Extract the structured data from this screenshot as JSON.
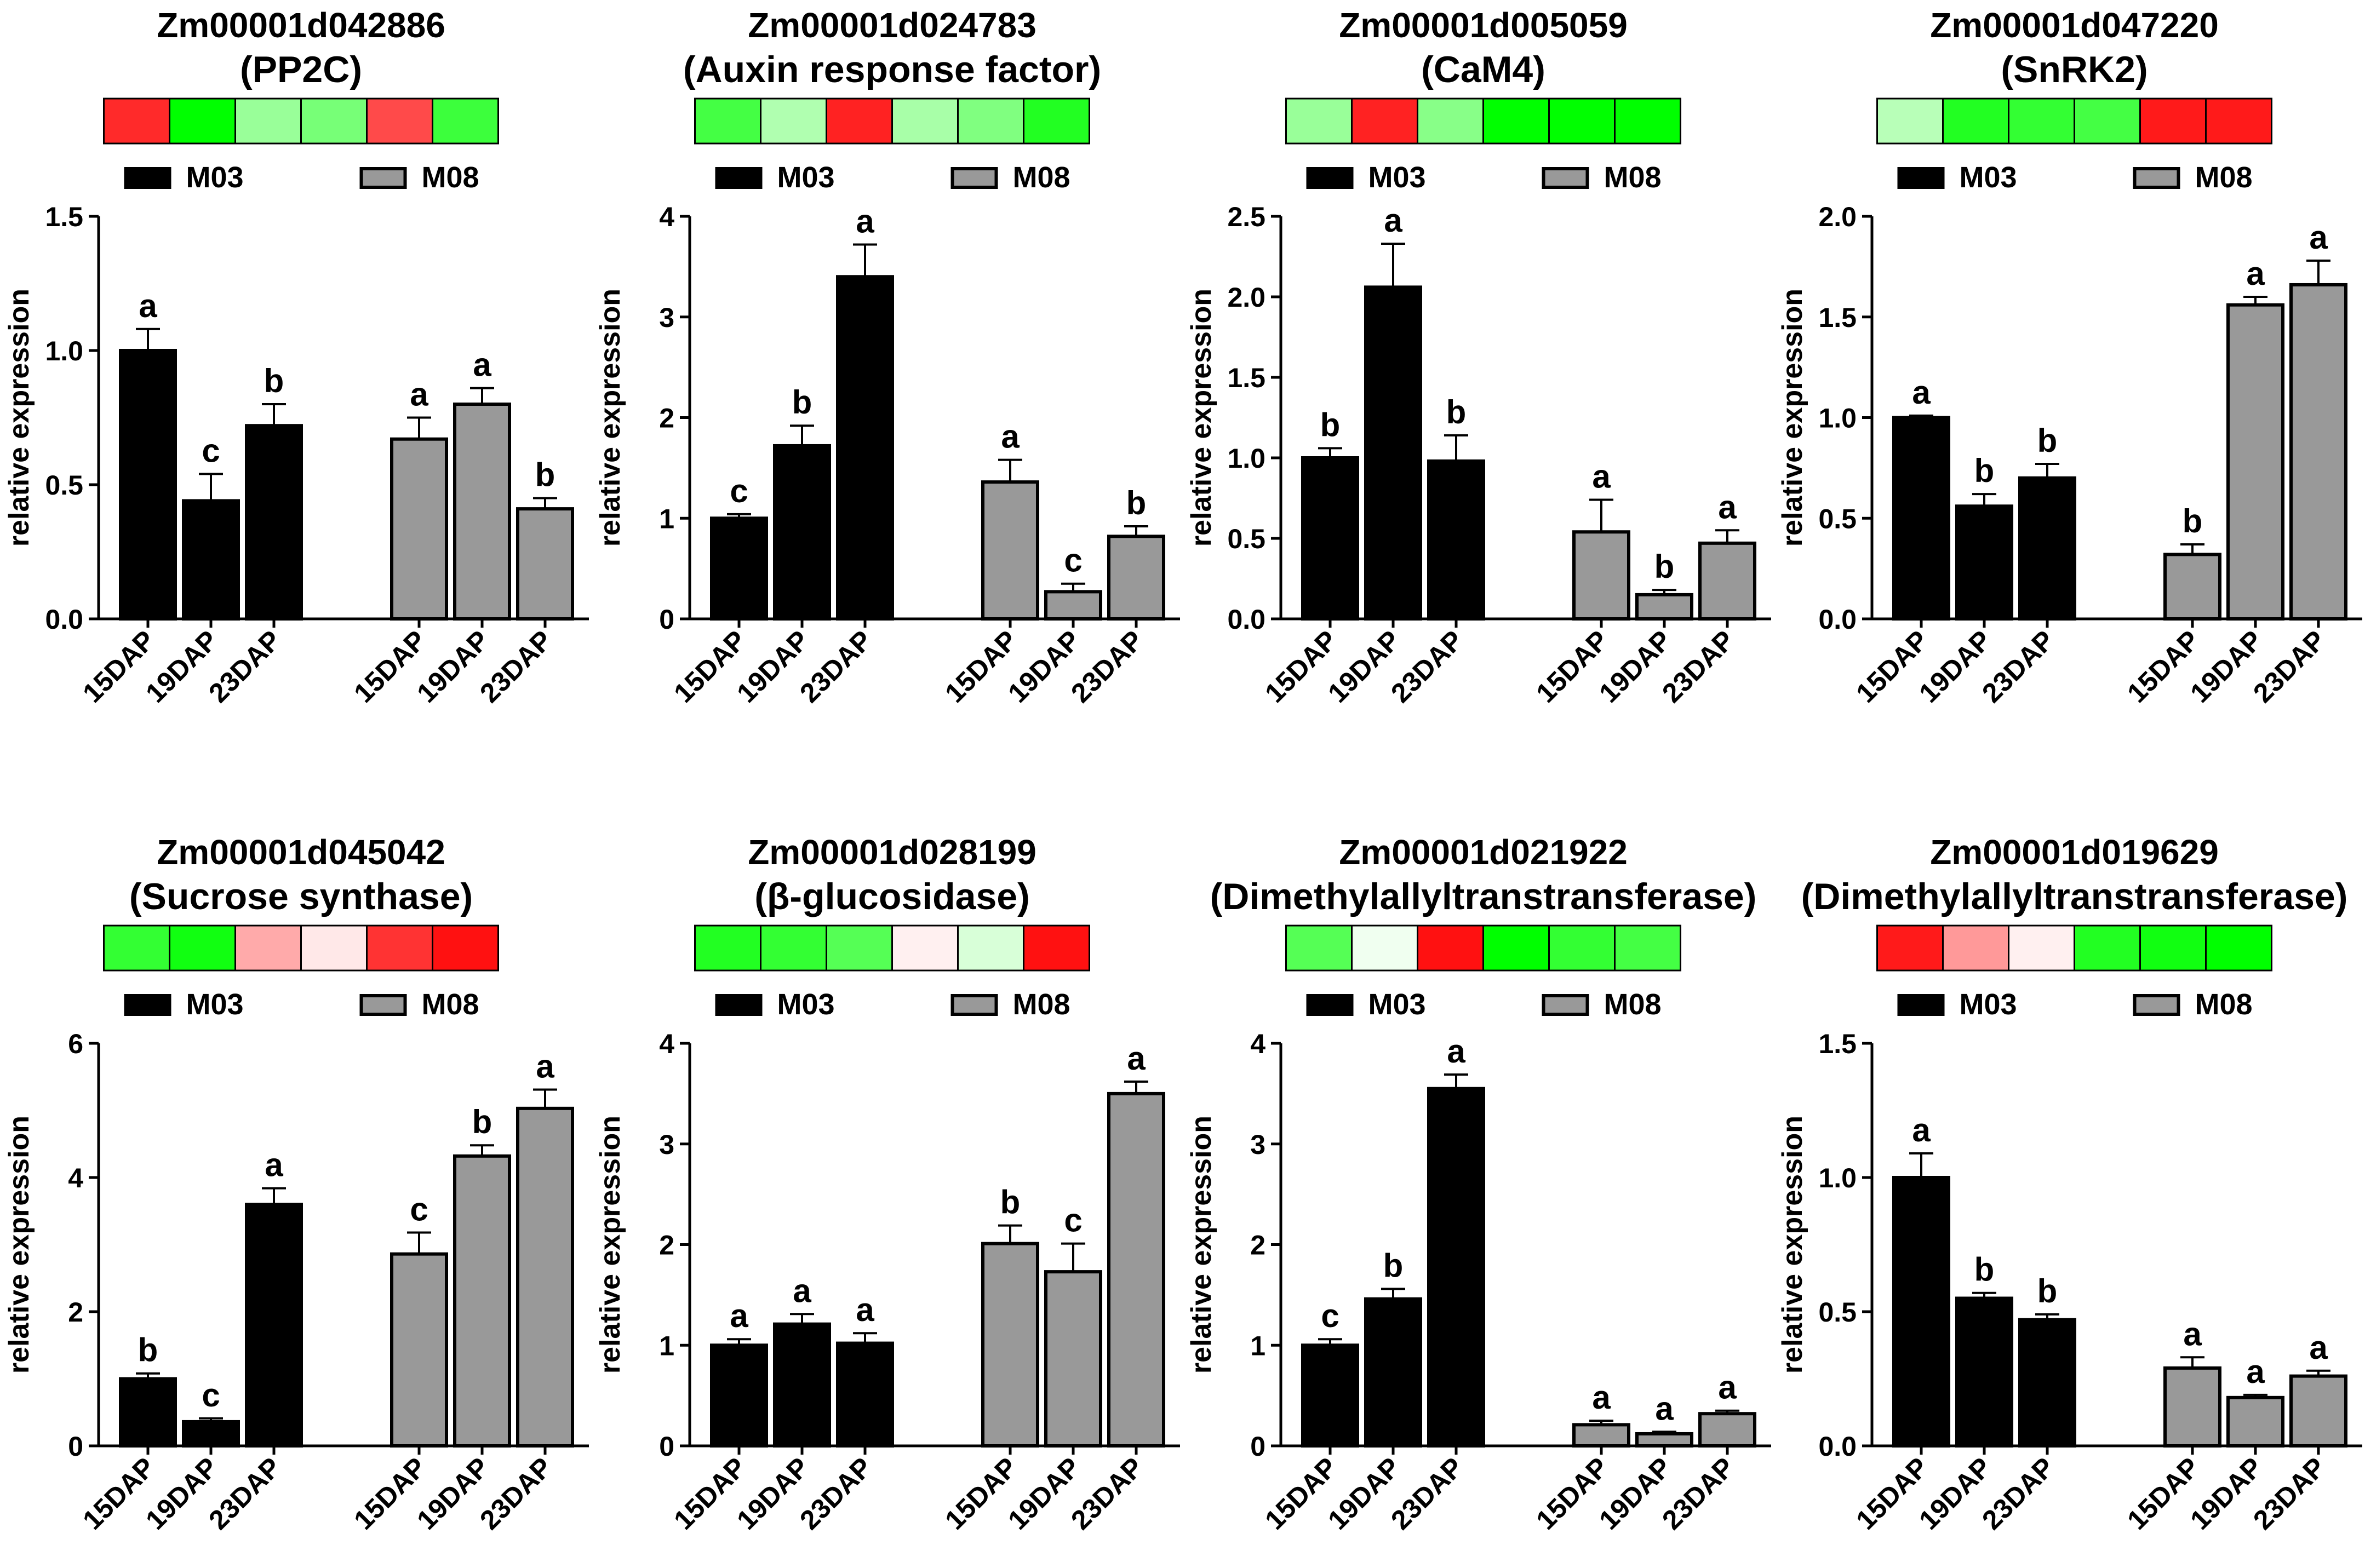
{
  "figure": {
    "legend_labels": [
      "M03",
      "M08"
    ]
  },
  "colors": {
    "m03_bar": "#000000",
    "m08_bar": "#999999"
  },
  "chart_data": [
    {
      "type": "bar",
      "title": "Zm00001d042886",
      "subtitle": "(PP2C)",
      "heatmap": [
        "#ff2a2a",
        "#00ff00",
        "#99ff99",
        "#77ff77",
        "#ff4a4a",
        "#3cff3c"
      ],
      "ylabel": "relative expression",
      "ylim": [
        0,
        1.5
      ],
      "yticks": [
        "0.0",
        "0.5",
        "1.0",
        "1.5"
      ],
      "categories": [
        "15DAP",
        "19DAP",
        "23DAP"
      ],
      "series": [
        {
          "name": "M03",
          "values": [
            1.0,
            0.44,
            0.72
          ],
          "errors": [
            0.08,
            0.1,
            0.08
          ],
          "letters": [
            "a",
            "c",
            "b"
          ]
        },
        {
          "name": "M08",
          "values": [
            0.67,
            0.8,
            0.41
          ],
          "errors": [
            0.08,
            0.06,
            0.04
          ],
          "letters": [
            "a",
            "a",
            "b"
          ]
        }
      ]
    },
    {
      "type": "bar",
      "title": "Zm00001d024783",
      "subtitle": "(Auxin response factor)",
      "heatmap": [
        "#44ff44",
        "#b0ffb0",
        "#ff2222",
        "#a8ffa8",
        "#80ff80",
        "#22ff22"
      ],
      "ylabel": "relative expression",
      "ylim": [
        0,
        4
      ],
      "yticks": [
        "0",
        "1",
        "2",
        "3",
        "4"
      ],
      "categories": [
        "15DAP",
        "19DAP",
        "23DAP"
      ],
      "series": [
        {
          "name": "M03",
          "values": [
            1.0,
            1.72,
            3.4
          ],
          "errors": [
            0.04,
            0.2,
            0.32
          ],
          "letters": [
            "c",
            "b",
            "a"
          ]
        },
        {
          "name": "M08",
          "values": [
            1.36,
            0.27,
            0.82
          ],
          "errors": [
            0.22,
            0.08,
            0.1
          ],
          "letters": [
            "a",
            "c",
            "b"
          ]
        }
      ]
    },
    {
      "type": "bar",
      "title": "Zm00001d005059",
      "subtitle": "(CaM4)",
      "heatmap": [
        "#99ff99",
        "#ff2222",
        "#88ff88",
        "#00ff00",
        "#00ff00",
        "#00ff00"
      ],
      "ylabel": "relative expression",
      "ylim": [
        0,
        2.5
      ],
      "yticks": [
        "0.0",
        "0.5",
        "1.0",
        "1.5",
        "2.0",
        "2.5"
      ],
      "categories": [
        "15DAP",
        "19DAP",
        "23DAP"
      ],
      "series": [
        {
          "name": "M03",
          "values": [
            1.0,
            2.06,
            0.98
          ],
          "errors": [
            0.06,
            0.27,
            0.16
          ],
          "letters": [
            "b",
            "a",
            "b"
          ]
        },
        {
          "name": "M08",
          "values": [
            0.54,
            0.15,
            0.47
          ],
          "errors": [
            0.2,
            0.03,
            0.08
          ],
          "letters": [
            "a",
            "b",
            "a"
          ]
        }
      ]
    },
    {
      "type": "bar",
      "title": "Zm00001d047220",
      "subtitle": "(SnRK2)",
      "heatmap": [
        "#b8ffb8",
        "#22ff22",
        "#33ff33",
        "#44ff44",
        "#ff1a1a",
        "#ff1a1a"
      ],
      "ylabel": "relative expression",
      "ylim": [
        0,
        2.0
      ],
      "yticks": [
        "0.0",
        "0.5",
        "1.0",
        "1.5",
        "2.0"
      ],
      "categories": [
        "15DAP",
        "19DAP",
        "23DAP"
      ],
      "series": [
        {
          "name": "M03",
          "values": [
            1.0,
            0.56,
            0.7
          ],
          "errors": [
            0.01,
            0.06,
            0.07
          ],
          "letters": [
            "a",
            "b",
            "b"
          ]
        },
        {
          "name": "M08",
          "values": [
            0.32,
            1.56,
            1.66
          ],
          "errors": [
            0.05,
            0.04,
            0.12
          ],
          "letters": [
            "b",
            "a",
            "a"
          ]
        }
      ]
    },
    {
      "type": "bar",
      "title": "Zm00001d045042",
      "subtitle": "(Sucrose synthase)",
      "heatmap": [
        "#33ff33",
        "#11ff11",
        "#ffaaaa",
        "#ffe8e8",
        "#ff3333",
        "#ff1111"
      ],
      "ylabel": "relative expression",
      "ylim": [
        0,
        6
      ],
      "yticks": [
        "0",
        "2",
        "4",
        "6"
      ],
      "categories": [
        "15DAP",
        "19DAP",
        "23DAP"
      ],
      "series": [
        {
          "name": "M03",
          "values": [
            1.0,
            0.36,
            3.6
          ],
          "errors": [
            0.08,
            0.05,
            0.24
          ],
          "letters": [
            "b",
            "c",
            "a"
          ]
        },
        {
          "name": "M08",
          "values": [
            2.86,
            4.32,
            5.03
          ],
          "errors": [
            0.32,
            0.16,
            0.28
          ],
          "letters": [
            "c",
            "b",
            "a"
          ]
        }
      ]
    },
    {
      "type": "bar",
      "title": "Zm00001d028199",
      "subtitle": "(β-glucosidase)",
      "heatmap": [
        "#22ff22",
        "#33ff33",
        "#55ff55",
        "#fff0f0",
        "#d8ffd8",
        "#ff1111"
      ],
      "ylabel": "relative expression",
      "ylim": [
        0,
        4
      ],
      "yticks": [
        "0",
        "1",
        "2",
        "3",
        "4"
      ],
      "categories": [
        "15DAP",
        "19DAP",
        "23DAP"
      ],
      "series": [
        {
          "name": "M03",
          "values": [
            1.0,
            1.21,
            1.02
          ],
          "errors": [
            0.06,
            0.1,
            0.1
          ],
          "letters": [
            "a",
            "a",
            "a"
          ]
        },
        {
          "name": "M08",
          "values": [
            2.01,
            1.73,
            3.5
          ],
          "errors": [
            0.18,
            0.28,
            0.12
          ],
          "letters": [
            "b",
            "c",
            "a"
          ]
        }
      ]
    },
    {
      "type": "bar",
      "title": "Zm00001d021922",
      "subtitle": "(Dimethylallyltranstransferase)",
      "heatmap": [
        "#55ff55",
        "#f0fff0",
        "#ff1111",
        "#00ff00",
        "#33ff33",
        "#44ff44"
      ],
      "ylabel": "relative expression",
      "ylim": [
        0,
        4
      ],
      "yticks": [
        "0",
        "1",
        "2",
        "3",
        "4"
      ],
      "categories": [
        "15DAP",
        "19DAP",
        "23DAP"
      ],
      "series": [
        {
          "name": "M03",
          "values": [
            1.0,
            1.46,
            3.55
          ],
          "errors": [
            0.06,
            0.1,
            0.14
          ],
          "letters": [
            "c",
            "b",
            "a"
          ]
        },
        {
          "name": "M08",
          "values": [
            0.21,
            0.12,
            0.32
          ],
          "errors": [
            0.04,
            0.02,
            0.03
          ],
          "letters": [
            "a",
            "a",
            "a"
          ]
        }
      ]
    },
    {
      "type": "bar",
      "title": "Zm00001d019629",
      "subtitle": "(Dimethylallyltranstransferase)",
      "heatmap": [
        "#ff1a1a",
        "#ff9999",
        "#fff0f0",
        "#22ff22",
        "#11ff11",
        "#00ff00"
      ],
      "ylabel": "relative expression",
      "ylim": [
        0,
        1.5
      ],
      "yticks": [
        "0.0",
        "0.5",
        "1.0",
        "1.5"
      ],
      "categories": [
        "15DAP",
        "19DAP",
        "23DAP"
      ],
      "series": [
        {
          "name": "M03",
          "values": [
            1.0,
            0.55,
            0.47
          ],
          "errors": [
            0.09,
            0.02,
            0.02
          ],
          "letters": [
            "a",
            "b",
            "b"
          ]
        },
        {
          "name": "M08",
          "values": [
            0.29,
            0.18,
            0.26
          ],
          "errors": [
            0.04,
            0.01,
            0.02
          ],
          "letters": [
            "a",
            "a",
            "a"
          ]
        }
      ]
    }
  ]
}
